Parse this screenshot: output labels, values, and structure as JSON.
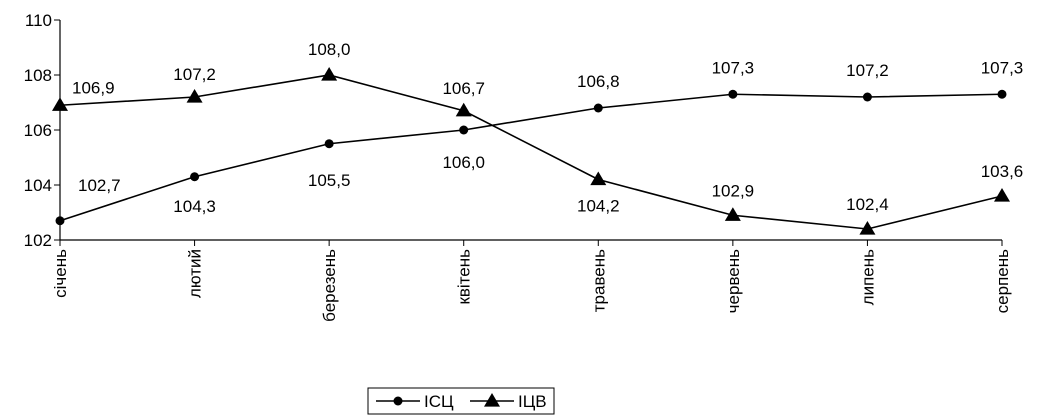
{
  "chart_data": {
    "type": "line",
    "categories": [
      "січень",
      "лютий",
      "березень",
      "квітень",
      "травень",
      "червень",
      "липень",
      "серпень"
    ],
    "series": [
      {
        "name": "ІСЦ",
        "marker": "circle",
        "values": [
          102.7,
          104.3,
          105.5,
          106.0,
          106.8,
          107.3,
          107.2,
          107.3
        ],
        "labels": [
          "102,7",
          "104,3",
          "105,5",
          "106,0",
          "106,8",
          "107,3",
          "107,2",
          "107,3"
        ]
      },
      {
        "name": "ІЦВ",
        "marker": "triangle",
        "values": [
          106.9,
          107.2,
          108.0,
          106.7,
          104.2,
          102.9,
          102.4,
          103.6
        ],
        "labels": [
          "106,9",
          "107,2",
          "108,0",
          "106,7",
          "104,2",
          "102,9",
          "102,4",
          "103,6"
        ]
      }
    ],
    "ylim": [
      102,
      110
    ],
    "yticks": [
      "102",
      "104",
      "106",
      "108",
      "110"
    ],
    "ytick_values": [
      102,
      104,
      106,
      108,
      110
    ],
    "grid": false,
    "legend_position": "bottom-center",
    "line_color": "#000000"
  }
}
